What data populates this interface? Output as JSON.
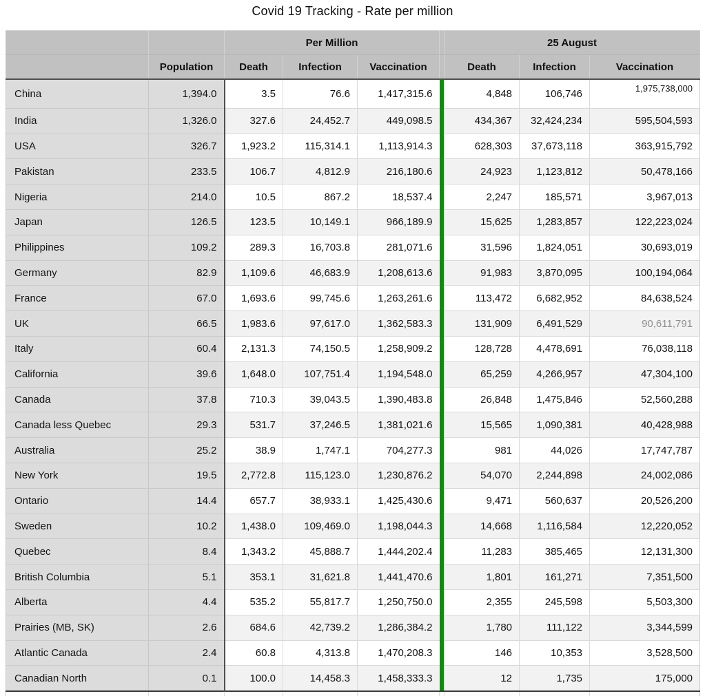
{
  "title": "Covid 19 Tracking - Rate per million",
  "table": {
    "group_headers": {
      "per_million": "Per Million",
      "aug": "25 August"
    },
    "columns": {
      "population": "Population",
      "death": "Death",
      "infection": "Infection",
      "vaccination": "Vaccination"
    },
    "colors": {
      "green_divider": "#0e8c0e",
      "header_bg": "#c1c1c1",
      "label_bg": "#dcdcdc",
      "alt_row_bg": "#f2f2f2",
      "muted_text": "#8f8f8f"
    },
    "rows": [
      {
        "name": "China",
        "population": "1,394.0",
        "pm_death": "3.5",
        "pm_infection": "76.6",
        "pm_vaccination": "1,417,315.6",
        "aug_death": "4,848",
        "aug_infection": "106,746",
        "aug_vaccination": "1,975,738,000"
      },
      {
        "name": "India",
        "population": "1,326.0",
        "pm_death": "327.6",
        "pm_infection": "24,452.7",
        "pm_vaccination": "449,098.5",
        "aug_death": "434,367",
        "aug_infection": "32,424,234",
        "aug_vaccination": "595,504,593"
      },
      {
        "name": "USA",
        "population": "326.7",
        "pm_death": "1,923.2",
        "pm_infection": "115,314.1",
        "pm_vaccination": "1,113,914.3",
        "aug_death": "628,303",
        "aug_infection": "37,673,118",
        "aug_vaccination": "363,915,792"
      },
      {
        "name": "Pakistan",
        "population": "233.5",
        "pm_death": "106.7",
        "pm_infection": "4,812.9",
        "pm_vaccination": "216,180.6",
        "aug_death": "24,923",
        "aug_infection": "1,123,812",
        "aug_vaccination": "50,478,166"
      },
      {
        "name": "Nigeria",
        "population": "214.0",
        "pm_death": "10.5",
        "pm_infection": "867.2",
        "pm_vaccination": "18,537.4",
        "aug_death": "2,247",
        "aug_infection": "185,571",
        "aug_vaccination": "3,967,013"
      },
      {
        "name": "Japan",
        "population": "126.5",
        "pm_death": "123.5",
        "pm_infection": "10,149.1",
        "pm_vaccination": "966,189.9",
        "aug_death": "15,625",
        "aug_infection": "1,283,857",
        "aug_vaccination": "122,223,024"
      },
      {
        "name": "Philippines",
        "population": "109.2",
        "pm_death": "289.3",
        "pm_infection": "16,703.8",
        "pm_vaccination": "281,071.6",
        "aug_death": "31,596",
        "aug_infection": "1,824,051",
        "aug_vaccination": "30,693,019"
      },
      {
        "name": "Germany",
        "population": "82.9",
        "pm_death": "1,109.6",
        "pm_infection": "46,683.9",
        "pm_vaccination": "1,208,613.6",
        "aug_death": "91,983",
        "aug_infection": "3,870,095",
        "aug_vaccination": "100,194,064"
      },
      {
        "name": "France",
        "population": "67.0",
        "pm_death": "1,693.6",
        "pm_infection": "99,745.6",
        "pm_vaccination": "1,263,261.6",
        "aug_death": "113,472",
        "aug_infection": "6,682,952",
        "aug_vaccination": "84,638,524"
      },
      {
        "name": "UK",
        "population": "66.5",
        "pm_death": "1,983.6",
        "pm_infection": "97,617.0",
        "pm_vaccination": "1,362,583.3",
        "aug_death": "131,909",
        "aug_infection": "6,491,529",
        "aug_vaccination": "90,611,791",
        "aug_vaccination_muted": true
      },
      {
        "name": "Italy",
        "population": "60.4",
        "pm_death": "2,131.3",
        "pm_infection": "74,150.5",
        "pm_vaccination": "1,258,909.2",
        "aug_death": "128,728",
        "aug_infection": "4,478,691",
        "aug_vaccination": "76,038,118"
      },
      {
        "name": "California",
        "population": "39.6",
        "pm_death": "1,648.0",
        "pm_infection": "107,751.4",
        "pm_vaccination": "1,194,548.0",
        "aug_death": "65,259",
        "aug_infection": "4,266,957",
        "aug_vaccination": "47,304,100"
      },
      {
        "name": "Canada",
        "population": "37.8",
        "pm_death": "710.3",
        "pm_infection": "39,043.5",
        "pm_vaccination": "1,390,483.8",
        "aug_death": "26,848",
        "aug_infection": "1,475,846",
        "aug_vaccination": "52,560,288"
      },
      {
        "name": "Canada less Quebec",
        "population": "29.3",
        "pm_death": "531.7",
        "pm_infection": "37,246.5",
        "pm_vaccination": "1,381,021.6",
        "aug_death": "15,565",
        "aug_infection": "1,090,381",
        "aug_vaccination": "40,428,988"
      },
      {
        "name": "Australia",
        "population": "25.2",
        "pm_death": "38.9",
        "pm_infection": "1,747.1",
        "pm_vaccination": "704,277.3",
        "aug_death": "981",
        "aug_infection": "44,026",
        "aug_vaccination": "17,747,787"
      },
      {
        "name": "New York",
        "population": "19.5",
        "pm_death": "2,772.8",
        "pm_infection": "115,123.0",
        "pm_vaccination": "1,230,876.2",
        "aug_death": "54,070",
        "aug_infection": "2,244,898",
        "aug_vaccination": "24,002,086"
      },
      {
        "name": "Ontario",
        "population": "14.4",
        "pm_death": "657.7",
        "pm_infection": "38,933.1",
        "pm_vaccination": "1,425,430.6",
        "aug_death": "9,471",
        "aug_infection": "560,637",
        "aug_vaccination": "20,526,200"
      },
      {
        "name": "Sweden",
        "population": "10.2",
        "pm_death": "1,438.0",
        "pm_infection": "109,469.0",
        "pm_vaccination": "1,198,044.3",
        "aug_death": "14,668",
        "aug_infection": "1,116,584",
        "aug_vaccination": "12,220,052"
      },
      {
        "name": "Quebec",
        "population": "8.4",
        "pm_death": "1,343.2",
        "pm_infection": "45,888.7",
        "pm_vaccination": "1,444,202.4",
        "aug_death": "11,283",
        "aug_infection": "385,465",
        "aug_vaccination": "12,131,300"
      },
      {
        "name": "British Columbia",
        "population": "5.1",
        "pm_death": "353.1",
        "pm_infection": "31,621.8",
        "pm_vaccination": "1,441,470.6",
        "aug_death": "1,801",
        "aug_infection": "161,271",
        "aug_vaccination": "7,351,500"
      },
      {
        "name": "Alberta",
        "population": "4.4",
        "pm_death": "535.2",
        "pm_infection": "55,817.7",
        "pm_vaccination": "1,250,750.0",
        "aug_death": "2,355",
        "aug_infection": "245,598",
        "aug_vaccination": "5,503,300"
      },
      {
        "name": "Prairies (MB, SK)",
        "population": "2.6",
        "pm_death": "684.6",
        "pm_infection": "42,739.2",
        "pm_vaccination": "1,286,384.2",
        "aug_death": "1,780",
        "aug_infection": "111,122",
        "aug_vaccination": "3,344,599"
      },
      {
        "name": "Atlantic Canada",
        "population": "2.4",
        "pm_death": "60.8",
        "pm_infection": "4,313.8",
        "pm_vaccination": "1,470,208.3",
        "aug_death": "146",
        "aug_infection": "10,353",
        "aug_vaccination": "3,528,500"
      },
      {
        "name": "Canadian North",
        "population": "0.1",
        "pm_death": "100.0",
        "pm_infection": "14,458.3",
        "pm_vaccination": "1,458,333.3",
        "aug_death": "12",
        "aug_infection": "1,735",
        "aug_vaccination": "175,000"
      }
    ]
  }
}
